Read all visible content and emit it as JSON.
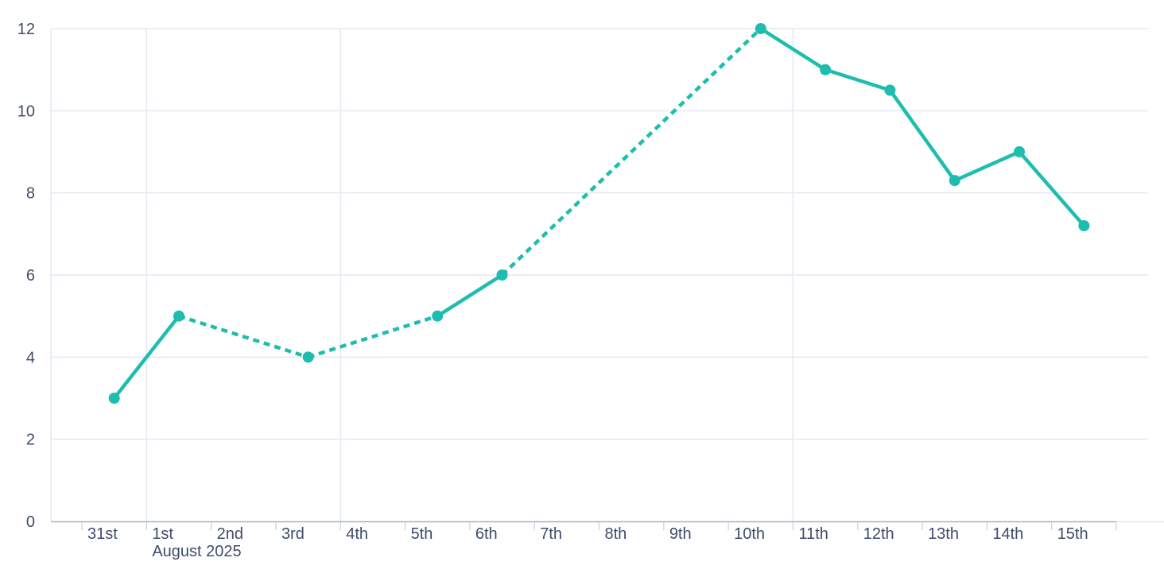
{
  "page": {
    "background": "#ffffff"
  },
  "chart_data": {
    "type": "line",
    "title": "",
    "xlabel": "",
    "ylabel": "",
    "x_axis": {
      "month_label": "August 2025",
      "tick_labels": [
        "31st",
        "1st",
        "2nd",
        "3rd",
        "4th",
        "5th",
        "6th",
        "7th",
        "8th",
        "9th",
        "10th",
        "11th",
        "12th",
        "13th",
        "14th",
        "15th"
      ],
      "vertical_gridlines_at": [
        "1st",
        "4th",
        "11th"
      ],
      "left_edge_gridline": true
    },
    "y_axis": {
      "tick_labels": [
        "0",
        "2",
        "4",
        "6",
        "8",
        "10",
        "12"
      ],
      "tick_values": [
        0,
        2,
        4,
        6,
        8,
        10,
        12
      ],
      "range": [
        0,
        12
      ],
      "grid": true
    },
    "legend": null,
    "series": [
      {
        "name": "daily-values",
        "color": "#1ebdb0",
        "points": [
          {
            "x": "31st",
            "value": 3
          },
          {
            "x": "1st",
            "value": 5
          },
          {
            "x": "3rd",
            "value": 4
          },
          {
            "x": "5th",
            "value": 5
          },
          {
            "x": "6th",
            "value": 6
          },
          {
            "x": "10th",
            "value": 12
          },
          {
            "x": "11th",
            "value": 11
          },
          {
            "x": "12th",
            "value": 10.5
          },
          {
            "x": "13th",
            "value": 8.3
          },
          {
            "x": "14th",
            "value": 9
          },
          {
            "x": "15th",
            "value": 7.2
          }
        ],
        "segments": [
          {
            "from": 0,
            "to": 1,
            "style": "solid"
          },
          {
            "from": 1,
            "to": 2,
            "style": "dashed"
          },
          {
            "from": 2,
            "to": 3,
            "style": "dashed"
          },
          {
            "from": 3,
            "to": 4,
            "style": "solid"
          },
          {
            "from": 4,
            "to": 5,
            "style": "dashed"
          },
          {
            "from": 5,
            "to": 6,
            "style": "solid"
          },
          {
            "from": 6,
            "to": 7,
            "style": "solid"
          },
          {
            "from": 7,
            "to": 8,
            "style": "solid"
          },
          {
            "from": 8,
            "to": 9,
            "style": "solid"
          },
          {
            "from": 9,
            "to": 10,
            "style": "solid"
          }
        ]
      }
    ],
    "colors": {
      "line": "#1ebdb0",
      "grid": "#e4e8f2",
      "axis_line": "#a6b1c2",
      "tick": "#d2d9e5",
      "label_text": "#3f4d6b"
    }
  }
}
